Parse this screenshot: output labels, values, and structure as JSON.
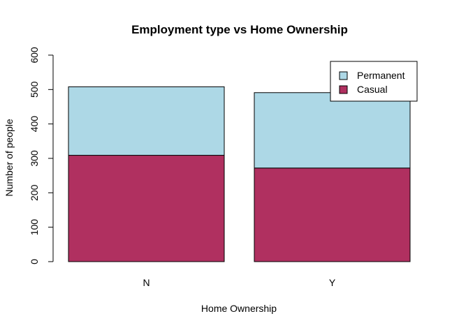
{
  "chart_data": {
    "type": "bar",
    "stacked": true,
    "title": "Employment type vs Home Ownership",
    "xlabel": "Home Ownership",
    "ylabel": "Number of people",
    "categories": [
      "N",
      "Y"
    ],
    "series": [
      {
        "name": "Casual",
        "color": "#b03060",
        "values": [
          309,
          272
        ]
      },
      {
        "name": "Permanent",
        "color": "#add8e6",
        "values": [
          199,
          219
        ]
      }
    ],
    "ylim": [
      0,
      600
    ],
    "yticks": [
      0,
      100,
      200,
      300,
      400,
      500,
      600
    ],
    "legend": {
      "position": "top-right",
      "entries": [
        "Permanent",
        "Casual"
      ]
    },
    "grid": false
  }
}
